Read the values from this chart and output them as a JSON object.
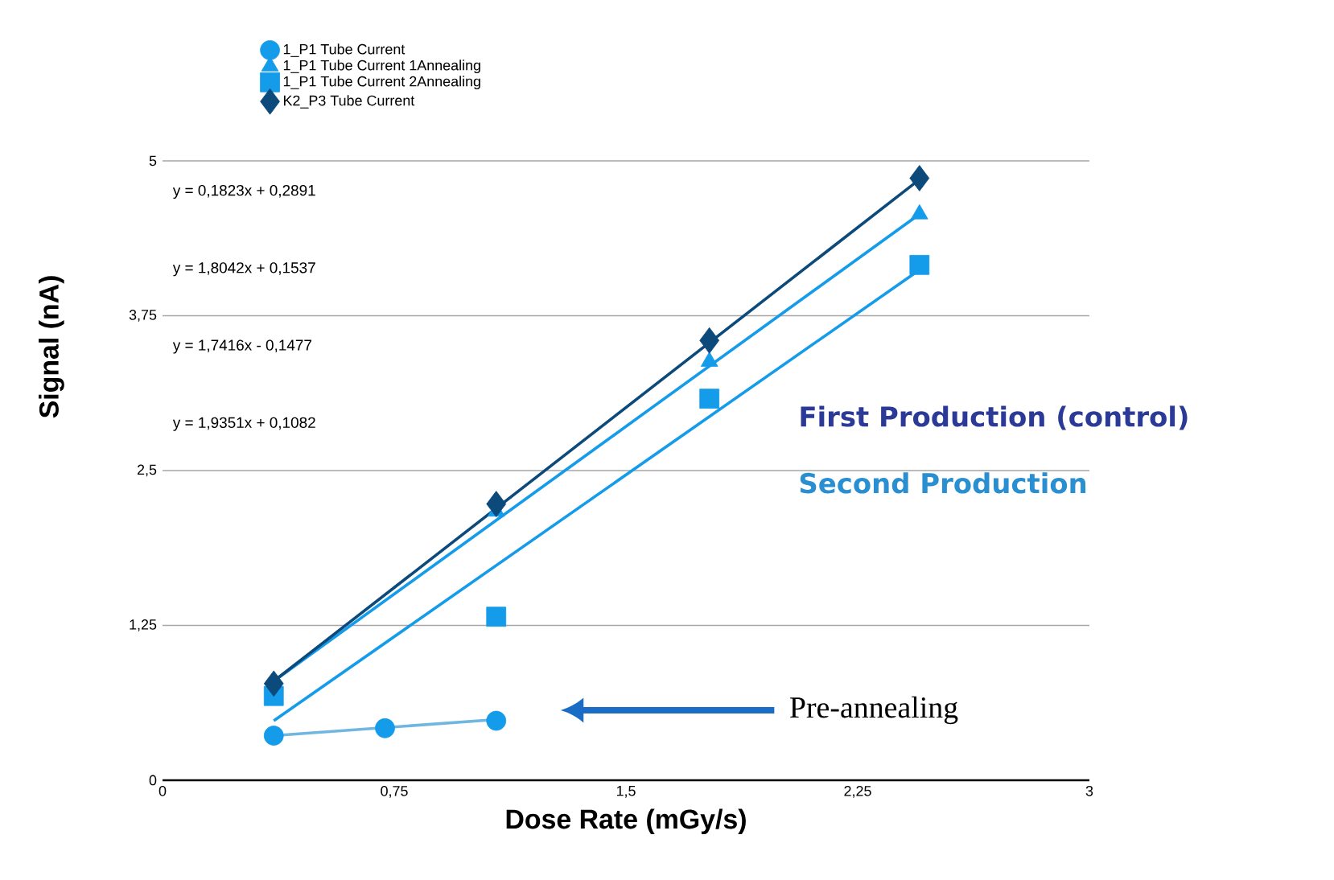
{
  "chart_data": {
    "type": "scatter",
    "xlabel": "Dose Rate (mGy/s)",
    "ylabel": "Signal (nA)",
    "xlim": [
      0,
      3
    ],
    "ylim": [
      0,
      5
    ],
    "xticks": [
      0,
      {
        "value": 0.75,
        "label": "0,75"
      },
      {
        "value": 1.5,
        "label": "1,5"
      },
      {
        "value": 2.25,
        "label": "2,25"
      },
      3
    ],
    "yticks": [
      0,
      {
        "value": 1.25,
        "label": "1,25"
      },
      {
        "value": 2.5,
        "label": "2,5"
      },
      {
        "value": 3.75,
        "label": "3,75"
      },
      5
    ],
    "grid": "y",
    "legend": "top",
    "series": [
      {
        "name": "1_P1 Tube Current",
        "color": "#149bea",
        "marker": "circle",
        "x": [
          0.36,
          0.72,
          1.08
        ],
        "values": [
          0.36,
          0.42,
          0.48
        ]
      },
      {
        "name": "1_P1 Tube Current 1Annealing",
        "color": "#149bea",
        "marker": "triangle",
        "x": [
          1.08,
          1.77,
          2.45
        ],
        "values": [
          2.17,
          3.38,
          4.57
        ]
      },
      {
        "name": "1_P1 Tube Current 2Annealing",
        "color": "#149bea",
        "marker": "square",
        "x": [
          0.36,
          1.08,
          1.77,
          2.45
        ],
        "values": [
          0.68,
          1.32,
          3.08,
          4.16
        ]
      },
      {
        "name": "K2_P3 Tube Current",
        "color": "#0b4a7a",
        "marker": "diamond",
        "x": [
          0.36,
          1.08,
          1.77,
          2.45
        ],
        "values": [
          0.78,
          2.23,
          3.55,
          4.86
        ]
      },
      {
        "type": "line",
        "color": "#6fb6e0",
        "x": [
          0.36,
          1.08
        ],
        "values": [
          0.36,
          0.49
        ]
      },
      {
        "type": "line",
        "color": "#149bea",
        "x": [
          0.36,
          2.45
        ],
        "values": [
          0.8,
          4.57
        ]
      },
      {
        "type": "line",
        "color": "#149bea",
        "x": [
          0.36,
          2.45
        ],
        "values": [
          0.48,
          4.12
        ]
      },
      {
        "type": "line",
        "color": "#0b4a7a",
        "x": [
          0.36,
          2.45
        ],
        "values": [
          0.8,
          4.85
        ]
      }
    ],
    "annotations": [
      "y = 0,1823x + 0,2891",
      "y = 1,8042x + 0,1537",
      "y = 1,7416x - 0,1477",
      "y = 1,9351x + 0,1082",
      "First Production (control)",
      "Second Production",
      "Pre-annealing"
    ]
  }
}
